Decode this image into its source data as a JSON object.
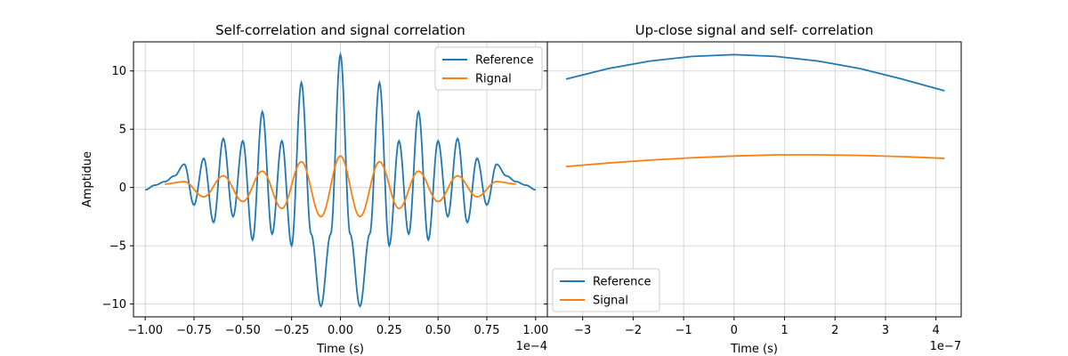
{
  "chart_data": [
    {
      "type": "line",
      "title": "Self-correlation and signal correlation",
      "xlabel": "Time (s)",
      "ylabel": "Amptidue",
      "x_offset_label": "1e−4",
      "xlim": [
        -1.06,
        1.06
      ],
      "ylim": [
        -11.1,
        12.5
      ],
      "x_ticks": [
        -1.0,
        -0.75,
        -0.5,
        -0.25,
        0.0,
        0.25,
        0.5,
        0.75,
        1.0
      ],
      "x_tick_labels": [
        "−1.00",
        "−0.75",
        "−0.50",
        "−0.25",
        "0.00",
        "0.25",
        "0.50",
        "0.75",
        "1.00"
      ],
      "y_ticks": [
        -10,
        -5,
        0,
        5,
        10
      ],
      "y_tick_labels": [
        "−10",
        "−5",
        "0",
        "5",
        "10"
      ],
      "grid": true,
      "legend_position": "top-right",
      "series": [
        {
          "name": "Reference",
          "color": "#1f77b4",
          "peaks": [
            [
              -1.0,
              -0.2
            ],
            [
              -0.95,
              0.2
            ],
            [
              -0.9,
              0.5
            ],
            [
              -0.85,
              1.0
            ],
            [
              -0.8,
              2.0
            ],
            [
              -0.75,
              -1.5
            ],
            [
              -0.7,
              2.5
            ],
            [
              -0.65,
              -3.0
            ],
            [
              -0.6,
              4.2
            ],
            [
              -0.55,
              -2.5
            ],
            [
              -0.5,
              4.0
            ],
            [
              -0.45,
              -4.5
            ],
            [
              -0.4,
              6.5
            ],
            [
              -0.35,
              -4.0
            ],
            [
              -0.3,
              4.0
            ],
            [
              -0.25,
              -5.0
            ],
            [
              -0.2,
              9.0
            ],
            [
              -0.15,
              -4.0
            ],
            [
              -0.1,
              -10.2
            ],
            [
              -0.05,
              -4.0
            ],
            [
              0.0,
              11.4
            ],
            [
              0.05,
              -4.0
            ],
            [
              0.1,
              -10.2
            ],
            [
              0.15,
              -4.0
            ],
            [
              0.2,
              9.0
            ],
            [
              0.25,
              -5.0
            ],
            [
              0.3,
              4.0
            ],
            [
              0.35,
              -4.0
            ],
            [
              0.4,
              6.5
            ],
            [
              0.45,
              -4.5
            ],
            [
              0.5,
              4.0
            ],
            [
              0.55,
              -2.5
            ],
            [
              0.6,
              4.2
            ],
            [
              0.65,
              -3.0
            ],
            [
              0.7,
              2.5
            ],
            [
              0.75,
              -1.5
            ],
            [
              0.8,
              2.0
            ],
            [
              0.85,
              1.0
            ],
            [
              0.9,
              0.5
            ],
            [
              0.95,
              0.2
            ],
            [
              1.0,
              -0.2
            ]
          ]
        },
        {
          "name": "Rignal",
          "color": "#ff7f0e",
          "peaks": [
            [
              -0.9,
              0.3
            ],
            [
              -0.8,
              0.5
            ],
            [
              -0.7,
              -0.8
            ],
            [
              -0.6,
              1.0
            ],
            [
              -0.5,
              -1.2
            ],
            [
              -0.4,
              1.4
            ],
            [
              -0.3,
              -1.8
            ],
            [
              -0.2,
              2.2
            ],
            [
              -0.1,
              -2.5
            ],
            [
              0.0,
              2.7
            ],
            [
              0.1,
              -2.5
            ],
            [
              0.2,
              2.2
            ],
            [
              0.3,
              -1.8
            ],
            [
              0.4,
              1.4
            ],
            [
              0.5,
              -1.2
            ],
            [
              0.6,
              1.0
            ],
            [
              0.7,
              -0.8
            ],
            [
              0.8,
              0.5
            ],
            [
              0.9,
              0.3
            ]
          ]
        }
      ]
    },
    {
      "type": "line",
      "title": "Up-close signal and self- correlation",
      "xlabel": "Time (s)",
      "ylabel": "",
      "x_offset_label": "1e−7",
      "xlim": [
        -3.7,
        4.5
      ],
      "ylim": [
        -11.1,
        12.5
      ],
      "x_ticks": [
        -3,
        -2,
        -1,
        0,
        1,
        2,
        3,
        4
      ],
      "x_tick_labels": [
        "−3",
        "−2",
        "−1",
        "0",
        "1",
        "2",
        "3",
        "4"
      ],
      "y_ticks": [
        -10,
        -5,
        0,
        5,
        10
      ],
      "grid": true,
      "legend_position": "bottom-left",
      "series": [
        {
          "name": "Reference",
          "color": "#1f77b4",
          "x": [
            -3.33,
            -2.5,
            -1.67,
            -0.83,
            0.0,
            0.83,
            1.67,
            2.5,
            3.33,
            4.17
          ],
          "y": [
            9.3,
            10.2,
            10.85,
            11.25,
            11.4,
            11.25,
            10.85,
            10.2,
            9.3,
            8.3
          ]
        },
        {
          "name": "Signal",
          "color": "#ff7f0e",
          "x": [
            -3.33,
            -2.5,
            -1.67,
            -0.83,
            0.0,
            0.83,
            1.67,
            2.5,
            3.33,
            4.17
          ],
          "y": [
            1.8,
            2.1,
            2.35,
            2.55,
            2.7,
            2.8,
            2.8,
            2.75,
            2.65,
            2.5
          ]
        }
      ]
    }
  ]
}
